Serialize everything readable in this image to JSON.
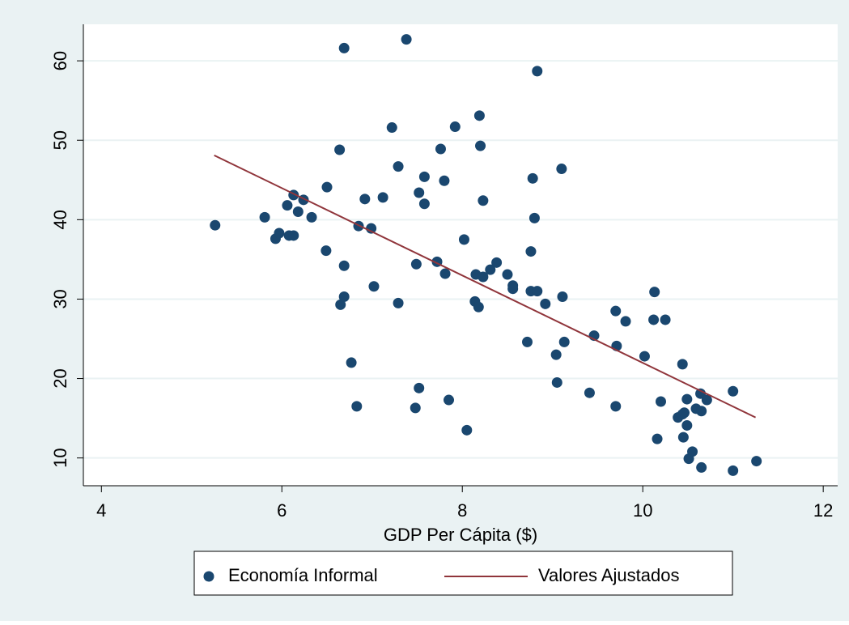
{
  "chart_data": {
    "type": "scatter",
    "xlabel": "GDP Per Cápita ($)",
    "xlim": [
      3.8,
      12.16
    ],
    "xticks": [
      4,
      6,
      8,
      10,
      12
    ],
    "ylim": [
      6.5,
      64.6
    ],
    "yticks": [
      10,
      20,
      30,
      40,
      50,
      60
    ],
    "grid": true,
    "legend": "bottom",
    "series": [
      {
        "name": "Economía Informal",
        "color": "#1a476f",
        "style": "markers",
        "x": [
          5.26,
          5.81,
          5.93,
          5.97,
          6.06,
          6.08,
          6.13,
          6.13,
          6.18,
          6.24,
          6.33,
          6.49,
          6.5,
          6.64,
          6.65,
          6.69,
          6.69,
          6.69,
          6.77,
          6.83,
          6.85,
          6.92,
          6.99,
          7.02,
          7.12,
          7.22,
          7.29,
          7.29,
          7.38,
          7.48,
          7.49,
          7.52,
          7.52,
          7.58,
          7.58,
          7.72,
          7.76,
          7.8,
          7.81,
          7.85,
          7.92,
          8.02,
          8.05,
          8.14,
          8.15,
          8.18,
          8.19,
          8.2,
          8.23,
          8.23,
          8.31,
          8.38,
          8.5,
          8.56,
          8.56,
          8.72,
          8.76,
          8.76,
          8.78,
          8.8,
          8.83,
          8.83,
          8.92,
          9.04,
          9.05,
          9.1,
          9.11,
          9.13,
          9.41,
          9.46,
          9.7,
          9.7,
          9.71,
          9.81,
          10.02,
          10.13,
          10.12,
          10.16,
          10.2,
          10.25,
          10.39,
          10.44,
          10.46,
          10.45,
          10.44,
          10.49,
          10.49,
          10.51,
          10.55,
          10.59,
          10.64,
          10.65,
          10.65,
          10.71,
          11.0,
          11.0,
          11.26
        ],
        "y": [
          39.3,
          40.3,
          37.6,
          38.3,
          41.8,
          38.0,
          38.0,
          43.1,
          41.0,
          42.5,
          40.3,
          36.1,
          44.1,
          48.8,
          29.3,
          30.3,
          34.2,
          61.6,
          22.0,
          16.5,
          39.2,
          42.6,
          38.9,
          31.6,
          42.8,
          51.6,
          29.5,
          46.7,
          62.7,
          16.3,
          34.4,
          43.4,
          18.8,
          45.4,
          42.0,
          34.7,
          48.9,
          44.9,
          33.2,
          17.3,
          51.7,
          37.5,
          13.5,
          29.7,
          33.1,
          29.0,
          53.1,
          49.3,
          32.8,
          42.4,
          33.7,
          34.6,
          33.1,
          31.7,
          31.3,
          24.6,
          36.0,
          31.0,
          45.2,
          40.2,
          58.7,
          31.0,
          29.4,
          23.0,
          19.5,
          46.4,
          30.3,
          24.6,
          18.2,
          25.4,
          28.5,
          16.5,
          24.1,
          27.2,
          22.8,
          30.9,
          27.4,
          12.4,
          17.1,
          27.4,
          15.1,
          15.5,
          15.7,
          12.6,
          21.8,
          17.4,
          14.1,
          9.9,
          10.8,
          16.2,
          18.1,
          8.8,
          15.9,
          17.3,
          18.4,
          8.4,
          9.6
        ]
      },
      {
        "name": "Valores Ajustados",
        "color": "#90353b",
        "style": "line",
        "x": [
          5.25,
          11.25
        ],
        "y": [
          48.1,
          15.1
        ]
      }
    ]
  }
}
